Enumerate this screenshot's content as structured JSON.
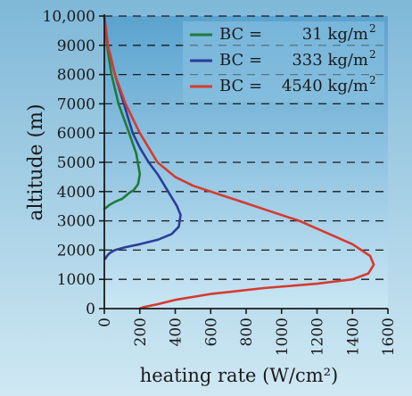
{
  "chart_data": {
    "type": "line",
    "xlabel": "heating rate (W/cm²)",
    "ylabel": "altitude (m)",
    "xlim": [
      0,
      1600
    ],
    "ylim": [
      0,
      10000
    ],
    "x_ticks": [
      0,
      200,
      400,
      600,
      800,
      1000,
      1200,
      1400,
      1600
    ],
    "y_ticks": [
      0,
      1000,
      2000,
      3000,
      4000,
      5000,
      6000,
      7000,
      8000,
      9000,
      10000
    ],
    "y_tick_labels": [
      "0",
      "1000",
      "2000",
      "3000",
      "4000",
      "5000",
      "6000",
      "7000",
      "8000",
      "9000",
      "10,000"
    ],
    "grid": "horizontal dashed at each 1000 m",
    "legend_position": "top-right",
    "colors": {
      "panel_top": "#5aa3cf",
      "panel_bottom": "#c9e6f4",
      "grid": "#1a1a1a"
    },
    "series": [
      {
        "name": "BC = 31 kg/m²",
        "legend_label": "BC =",
        "legend_value": "31 kg/m",
        "legend_exp": "2",
        "color": "#1f7a3a",
        "x": [
          0,
          15,
          40,
          80,
          140,
          180,
          200,
          190,
          165,
          140,
          120,
          100,
          80,
          60,
          30,
          10,
          0
        ],
        "y": [
          10000,
          9000,
          8000,
          7000,
          6000,
          5300,
          4600,
          4250,
          4050,
          3950,
          3850,
          3750,
          3700,
          3650,
          3550,
          3450,
          3400
        ]
      },
      {
        "name": "BC = 333 kg/m²",
        "legend_label": "BC =",
        "legend_value": "333 kg/m",
        "legend_exp": "2",
        "color": "#2a3d9a",
        "x": [
          0,
          20,
          60,
          110,
          160,
          200,
          250,
          300,
          360,
          410,
          430,
          420,
          380,
          300,
          200,
          120,
          60,
          30,
          15,
          5
        ],
        "y": [
          10000,
          9000,
          8000,
          7000,
          6000,
          5500,
          5000,
          4600,
          4000,
          3500,
          3200,
          2800,
          2550,
          2350,
          2200,
          2100,
          2000,
          1900,
          1800,
          1700
        ]
      },
      {
        "name": "BC = 4540 kg/m²",
        "legend_label": "BC =",
        "legend_value": "4540 kg/m",
        "legend_exp": "2",
        "color": "#d63a2f",
        "x": [
          0,
          20,
          60,
          120,
          200,
          300,
          400,
          500,
          650,
          800,
          950,
          1100,
          1250,
          1400,
          1500,
          1520,
          1490,
          1400,
          1200,
          900,
          600,
          400,
          300,
          220,
          200
        ],
        "y": [
          10000,
          9000,
          8000,
          7000,
          6000,
          5000,
          4500,
          4200,
          3900,
          3600,
          3300,
          3000,
          2600,
          2200,
          1800,
          1500,
          1200,
          1000,
          850,
          700,
          500,
          300,
          150,
          50,
          0
        ]
      }
    ]
  }
}
